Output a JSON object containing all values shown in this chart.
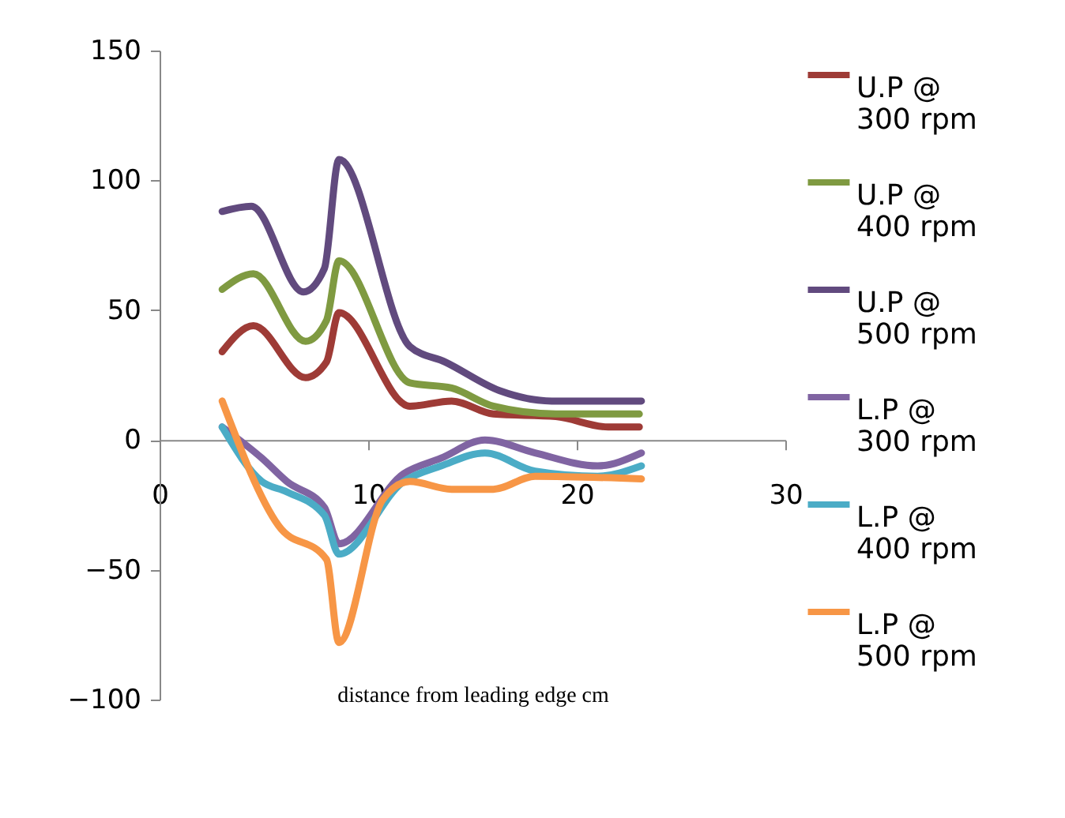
{
  "chart_data": {
    "type": "line",
    "xlabel": "distance from  leading edge cm",
    "xlim": [
      0,
      30
    ],
    "xticks": [
      0,
      10,
      20,
      30
    ],
    "ylim": [
      -100,
      150
    ],
    "yticks": [
      -100,
      -50,
      0,
      50,
      100,
      150
    ],
    "grid": false,
    "legend": "right",
    "marker": "none",
    "line_style": "solid",
    "series": [
      {
        "name": "U.P  @ 300 rpm",
        "color": "#9e3b36",
        "x": [
          3,
          4.5,
          7,
          8,
          8.6,
          12,
          14,
          16,
          19,
          21.5,
          23
        ],
        "values": [
          34,
          44,
          24,
          30,
          49,
          13,
          15,
          10,
          9,
          5,
          5
        ]
      },
      {
        "name": "U.P  @ 400 rpm",
        "color": "#7f9a41",
        "x": [
          3,
          4.5,
          7,
          8,
          8.6,
          12,
          14,
          16,
          19,
          23
        ],
        "values": [
          58,
          64,
          38,
          46,
          69,
          22,
          20,
          13,
          10,
          10
        ]
      },
      {
        "name": "U.P @ 500 rpm",
        "color": "#614a7e",
        "x": [
          3,
          4.4,
          6.9,
          7.9,
          8.6,
          12,
          13.7,
          16.3,
          18.8,
          23.1
        ],
        "values": [
          88,
          90,
          57,
          66,
          108,
          36,
          30,
          19,
          15,
          15
        ]
      },
      {
        "name": "L.P @ 300 rpm",
        "color": "#8064a2",
        "x": [
          3,
          4.9,
          6.1,
          7.9,
          8.6,
          11.7,
          13.5,
          15.6,
          18,
          21,
          23.1
        ],
        "values": [
          5,
          -7,
          -16,
          -26,
          -40,
          -13,
          -7,
          0,
          -5,
          -10,
          -5
        ]
      },
      {
        "name": "L.P @ 400 rpm",
        "color": "#4bacc6",
        "x": [
          3,
          4.9,
          6.1,
          7.9,
          8.6,
          11.7,
          13.5,
          15.6,
          18,
          21,
          23.1
        ],
        "values": [
          5,
          -16,
          -20,
          -29,
          -44,
          -16,
          -10,
          -5,
          -12,
          -14,
          -10
        ]
      },
      {
        "name": "L.P @ 500 rpm",
        "color": "#f79646",
        "x": [
          3,
          5.7,
          8,
          8.6,
          10.7,
          12,
          14,
          16,
          18,
          23.1
        ],
        "values": [
          15,
          -33,
          -46,
          -78,
          -23,
          -16,
          -19,
          -19,
          -14,
          -15
        ]
      }
    ]
  }
}
